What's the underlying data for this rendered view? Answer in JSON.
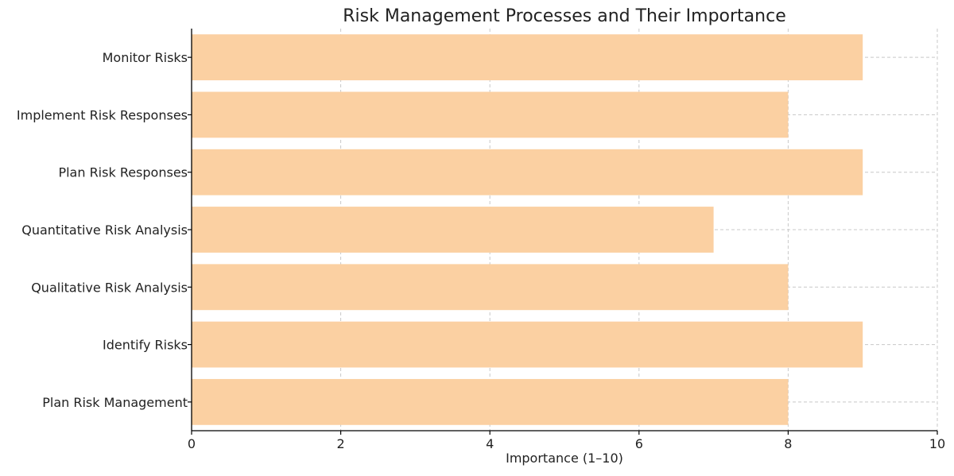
{
  "chart_data": {
    "type": "bar",
    "orientation": "horizontal",
    "title": "Risk Management Processes and Their Importance",
    "xlabel": "Importance (1–10)",
    "ylabel": "",
    "categories": [
      "Plan Risk Management",
      "Identify Risks",
      "Qualitative Risk Analysis",
      "Quantitative Risk Analysis",
      "Plan Risk Responses",
      "Implement Risk Responses",
      "Monitor Risks"
    ],
    "values": [
      8,
      9,
      8,
      7,
      9,
      8,
      9
    ],
    "xlim": [
      0,
      10
    ],
    "xticks": [
      0,
      2,
      4,
      6,
      8,
      10
    ],
    "grid": true,
    "bar_color": "#fbd0a2"
  }
}
